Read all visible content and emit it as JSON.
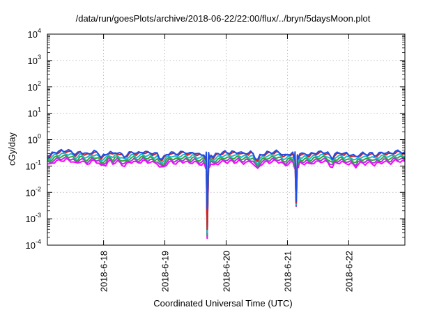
{
  "chart_data": {
    "type": "line",
    "title": "/data/run/goesPlots/archive/2018-06-22/22:00/flux/../bryn/5daysMoon.plot",
    "xlabel": "Coordinated Universal Time (UTC)",
    "ylabel": "cGy/day",
    "yscale": "log",
    "ylim": [
      0.0001,
      10000
    ],
    "yticks": [
      {
        "value": 0.0001,
        "base": "10",
        "exp": "-4"
      },
      {
        "value": 0.001,
        "base": "10",
        "exp": "-3"
      },
      {
        "value": 0.01,
        "base": "10",
        "exp": "-2"
      },
      {
        "value": 0.1,
        "base": "10",
        "exp": "-1"
      },
      {
        "value": 1,
        "base": "10",
        "exp": "0"
      },
      {
        "value": 10,
        "base": "10",
        "exp": "1"
      },
      {
        "value": 100,
        "base": "10",
        "exp": "2"
      },
      {
        "value": 1000,
        "base": "10",
        "exp": "3"
      },
      {
        "value": 10000,
        "base": "10",
        "exp": "4"
      }
    ],
    "xlim": [
      "2018-06-17 02:00",
      "2018-06-22 22:00"
    ],
    "xticks": [
      "2018-6-18",
      "2018-6-19",
      "2018-6-20",
      "2018-6-21",
      "2018-6-22"
    ],
    "grid": true,
    "legend": "none",
    "baseline": [
      0.27,
      0.25,
      0.3,
      0.33,
      0.35,
      0.36,
      0.38,
      0.37,
      0.4,
      0.38,
      0.36,
      0.33,
      0.28,
      0.3,
      0.35,
      0.33,
      0.3,
      0.28,
      0.3,
      0.34,
      0.36,
      0.33,
      0.3,
      0.22,
      0.25,
      0.26,
      0.33,
      0.35,
      0.28,
      0.32,
      0.34,
      0.3,
      0.26,
      0.23,
      0.27,
      0.31,
      0.33,
      0.34,
      0.3,
      0.31,
      0.33,
      0.36,
      0.34,
      0.32,
      0.33,
      0.31,
      0.29,
      0.3,
      0.21,
      0.19,
      0.22,
      0.27,
      0.31,
      0.33,
      0.3,
      0.29,
      0.31,
      0.33,
      0.33,
      0.34,
      0.31,
      0.29,
      0.32,
      0.33,
      0.29,
      0.27,
      0.27,
      0.29,
      0.31,
      0.3,
      0.28,
      0.23,
      0.27,
      0.29,
      0.3,
      0.33,
      0.34,
      0.32,
      0.33,
      0.35,
      0.32,
      0.33,
      0.35,
      0.31,
      0.3,
      0.32,
      0.31,
      0.33,
      0.3,
      0.21,
      0.17,
      0.25,
      0.28,
      0.3,
      0.33,
      0.32,
      0.33,
      0.35,
      0.36,
      0.33,
      0.31,
      0.26,
      0.25,
      0.28,
      0.3,
      0.31,
      0.32,
      0.29,
      0.3,
      0.28,
      0.29,
      0.3,
      0.26,
      0.29,
      0.31,
      0.32,
      0.33,
      0.34,
      0.34,
      0.33,
      0.31,
      0.24,
      0.2,
      0.29,
      0.3,
      0.31,
      0.32,
      0.29,
      0.3,
      0.27,
      0.28,
      0.25,
      0.22,
      0.26,
      0.29,
      0.3,
      0.28,
      0.29,
      0.31,
      0.29,
      0.25,
      0.28,
      0.3,
      0.31,
      0.33,
      0.32,
      0.31,
      0.3,
      0.33,
      0.36,
      0.36,
      0.35,
      0.34,
      0.32
    ],
    "series": [
      {
        "color": "#1f4fe8",
        "factor": 1.0,
        "dips": [
          {
            "x": 0.447,
            "y": 0.0025
          },
          {
            "x": 0.696,
            "y": 0.0045
          }
        ]
      },
      {
        "color": "#d41f1f",
        "factor": 0.93,
        "dips": [
          {
            "x": 0.447,
            "y": 0.0004
          },
          {
            "x": 0.696,
            "y": 0.004
          }
        ]
      },
      {
        "color": "#1fb8c8",
        "factor": 0.75,
        "dips": [
          {
            "x": 0.447,
            "y": 0.0003
          },
          {
            "x": 0.696,
            "y": 0.0035
          }
        ]
      },
      {
        "color": "#2ea63a",
        "factor": 0.62,
        "dips": [
          {
            "x": 0.447,
            "y": 0.00025
          },
          {
            "x": 0.696,
            "y": 0.0032
          }
        ]
      },
      {
        "color": "#9a3fd0",
        "factor": 0.52,
        "dips": [
          {
            "x": 0.447,
            "y": 0.0002
          },
          {
            "x": 0.696,
            "y": 0.003
          }
        ]
      },
      {
        "color": "#ff00ff",
        "factor": 0.44,
        "dips": [
          {
            "x": 0.447,
            "y": 0.00018
          },
          {
            "x": 0.696,
            "y": 0.003
          }
        ]
      }
    ]
  }
}
